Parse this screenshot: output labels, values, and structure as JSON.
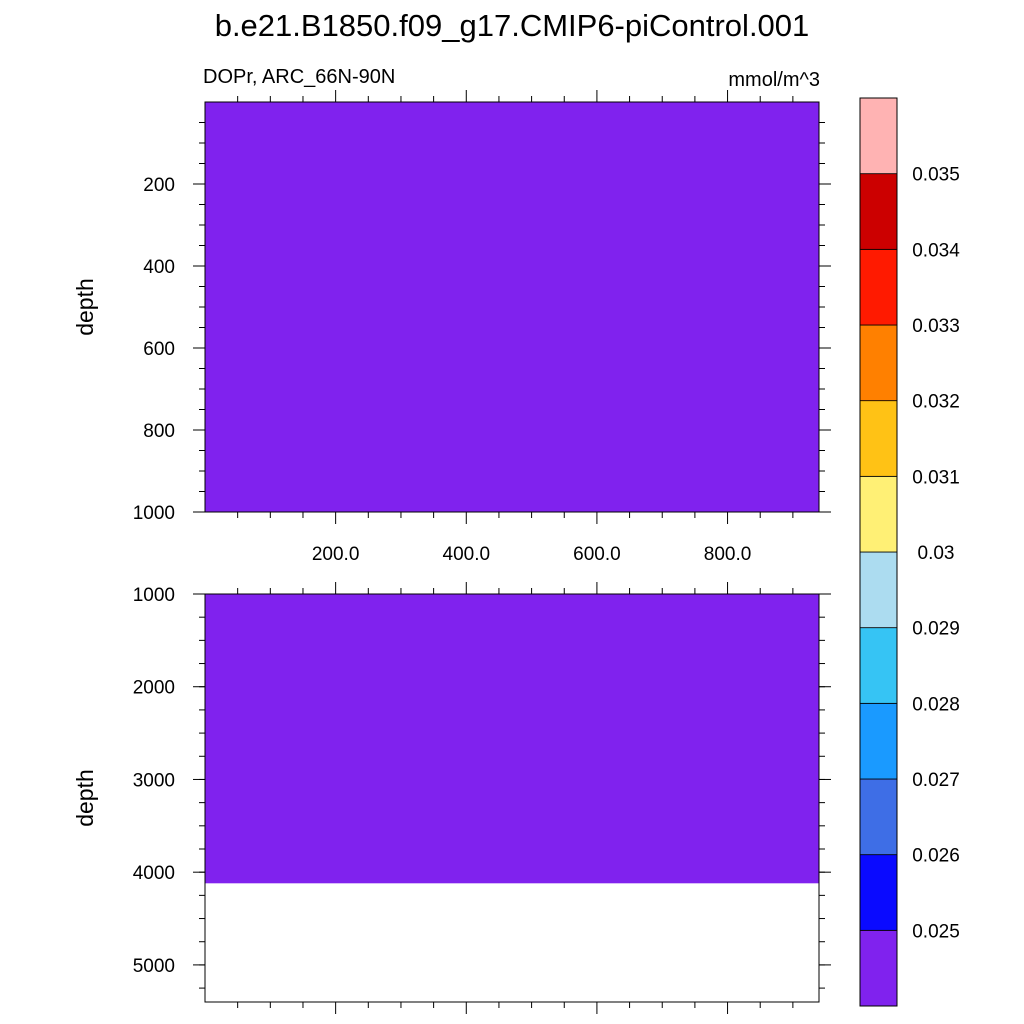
{
  "title": "b.e21.B1850.f09_g17.CMIP6-piControl.001",
  "subtitle_left": "DOPr, ARC_66N-90N",
  "subtitle_right": "mmol/m^3",
  "fill_color": "#8022ee",
  "chart_data": [
    {
      "type": "heatmap",
      "panel": "upper",
      "ylabel": "depth",
      "xlim": [
        0,
        940
      ],
      "ylim": [
        0,
        1000
      ],
      "y_reversed": true,
      "x_ticks": [
        200,
        400,
        600,
        800
      ],
      "x_tick_labels": [
        "200.0",
        "400.0",
        "600.0",
        "800.0"
      ],
      "y_ticks": [
        200,
        400,
        600,
        800,
        1000
      ],
      "y_tick_labels": [
        "200",
        "400",
        "600",
        "800",
        "1000"
      ],
      "filled_depth_range": [
        0,
        1000
      ],
      "field_value_band": "below 0.025"
    },
    {
      "type": "heatmap",
      "panel": "lower",
      "ylabel": "depth",
      "xlim": [
        0,
        940
      ],
      "ylim": [
        1000,
        5400
      ],
      "y_reversed": true,
      "x_ticks": [
        200,
        400,
        600,
        800
      ],
      "y_ticks": [
        1000,
        2000,
        3000,
        4000,
        5000
      ],
      "y_tick_labels": [
        "1000",
        "2000",
        "3000",
        "4000",
        "5000"
      ],
      "filled_depth_range": [
        1000,
        4120
      ],
      "field_value_band": "below 0.025"
    }
  ],
  "colorbar": {
    "levels": [
      "0.025",
      "0.026",
      "0.027",
      "0.028",
      "0.029",
      "0.03",
      "0.031",
      "0.032",
      "0.033",
      "0.034",
      "0.035"
    ],
    "colors": [
      "#8022ee",
      "#0a0aff",
      "#3e6ee6",
      "#1a9aff",
      "#36c4f4",
      "#acdcf0",
      "#fff075",
      "#ffc215",
      "#ff8000",
      "#ff1a00",
      "#cc0000",
      "#ffb3b3"
    ]
  }
}
